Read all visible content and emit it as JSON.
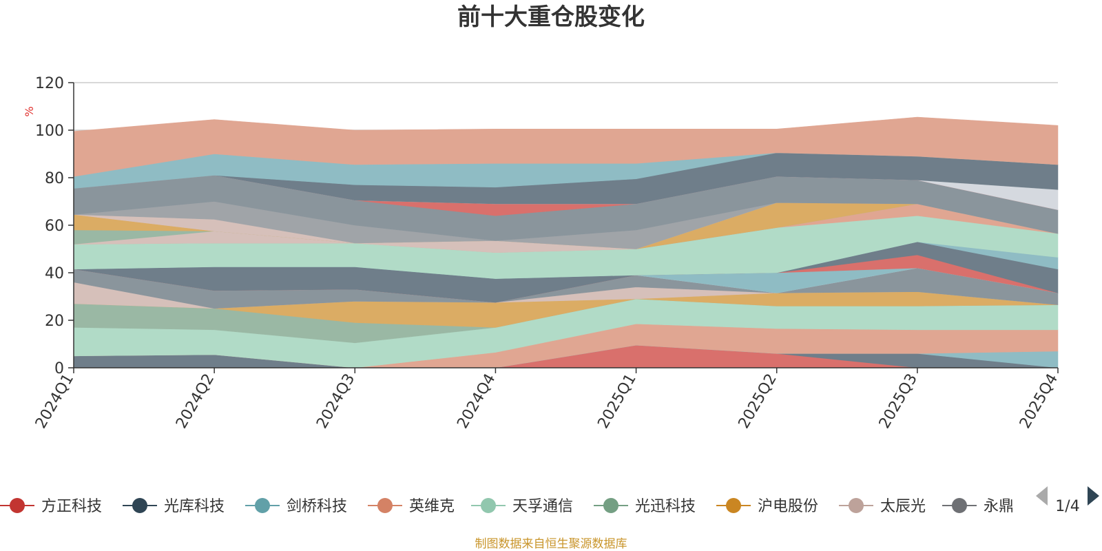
{
  "chart_data": {
    "type": "area",
    "stacked": true,
    "title": "前十大重仓股变化",
    "y_unit": "%",
    "x": [
      "2024Q1",
      "2024Q2",
      "2024Q3",
      "2024Q4",
      "2025Q1",
      "2025Q2",
      "2025Q3",
      "2025Q4"
    ],
    "ylim": [
      0,
      120
    ],
    "yticks": [
      0,
      20,
      40,
      60,
      80,
      100,
      120
    ],
    "grid": true,
    "legend_position": "bottom",
    "series": [
      {
        "name": "方正科技",
        "color": "#d9706c",
        "values": [
          0,
          0,
          0,
          0,
          9.5,
          6,
          0,
          0
        ]
      },
      {
        "name": "光库科技",
        "color": "#6f7e8a",
        "values": [
          5,
          5.5,
          0,
          0,
          0,
          0,
          6,
          0
        ]
      },
      {
        "name": "剑桥科技",
        "color": "#8fbcc4",
        "values": [
          0,
          0,
          0,
          0,
          0,
          0,
          0,
          7
        ]
      },
      {
        "name": "英维克",
        "color": "#e0a692",
        "values": [
          0,
          0,
          0,
          6.5,
          9,
          10.5,
          10,
          9
        ]
      },
      {
        "name": "天孚通信",
        "color": "#b1dbc7",
        "values": [
          12,
          10.5,
          10.5,
          10.5,
          10.5,
          9.5,
          10,
          10.5
        ]
      },
      {
        "name": "光迅科技",
        "color": "#9ab8a4",
        "values": [
          10,
          9,
          8.5,
          0,
          0,
          0,
          0,
          0
        ]
      },
      {
        "name": "沪电股份",
        "color": "#dbac64",
        "values": [
          0,
          0,
          9,
          10.5,
          0,
          5.5,
          6,
          0
        ]
      },
      {
        "name": "太辰光",
        "color": "#d6c0ba",
        "values": [
          9,
          0,
          0,
          0,
          5,
          0,
          0,
          0
        ]
      },
      {
        "name": "永鼎",
        "color": "#8a959c",
        "values": [
          5.5,
          7.5,
          5,
          0,
          5,
          0,
          10,
          5
        ]
      },
      {
        "name": "",
        "color": "#d5d9df",
        "values": [
          0,
          0,
          0,
          0,
          0,
          0,
          0,
          0
        ]
      },
      {
        "name": "",
        "color": "#8fbcc4",
        "values": [
          0,
          0,
          0,
          0,
          0,
          8.5,
          0,
          0
        ]
      },
      {
        "name": "",
        "color": "#d9706c",
        "values": [
          0,
          0,
          0,
          0,
          0,
          0,
          5.5,
          0
        ]
      },
      {
        "name": "",
        "color": "#6f7e8a",
        "values": [
          0,
          10,
          9.5,
          10,
          0,
          0,
          5.5,
          10
        ]
      },
      {
        "name": "",
        "color": "#8fbcc4",
        "values": [
          0,
          0,
          0,
          0,
          0,
          0,
          0,
          5
        ]
      },
      {
        "name": "",
        "color": "#b1dbc7",
        "values": [
          10.5,
          10,
          10,
          11,
          11,
          19,
          11,
          10
        ]
      },
      {
        "name": "",
        "color": "#e0a692",
        "values": [
          0,
          0,
          0,
          0,
          0,
          0,
          5,
          0
        ]
      },
      {
        "name": "",
        "color": "#d6c0ba",
        "values": [
          0,
          5,
          0,
          5,
          0,
          0,
          0,
          0
        ]
      },
      {
        "name": "",
        "color": "#9ab8a4",
        "values": [
          6,
          0,
          0,
          0,
          0,
          0,
          0,
          0
        ]
      },
      {
        "name": "",
        "color": "#dbac64",
        "values": [
          6.5,
          0,
          0,
          0,
          0,
          10.5,
          0,
          0
        ]
      },
      {
        "name": "",
        "color": "#d6c0ba",
        "values": [
          0,
          5,
          0,
          0,
          0,
          0,
          0,
          0
        ]
      },
      {
        "name": "",
        "color": "#a0a4a8",
        "values": [
          0,
          7.5,
          7.5,
          0,
          8,
          0,
          0,
          0
        ]
      },
      {
        "name": "",
        "color": "#8a959c",
        "values": [
          11,
          11,
          10.5,
          10.5,
          11,
          11,
          10,
          10
        ]
      },
      {
        "name": "",
        "color": "#d9706c",
        "values": [
          0,
          0,
          0,
          5,
          0,
          0,
          0,
          0
        ]
      },
      {
        "name": "",
        "color": "#d5d9df",
        "values": [
          0,
          0,
          0,
          0,
          0,
          0,
          0,
          8.5
        ]
      },
      {
        "name": "",
        "color": "#6f7e8a",
        "values": [
          0,
          0,
          6.5,
          7,
          10.5,
          10,
          10,
          10.5
        ]
      },
      {
        "name": "",
        "color": "#8fbcc4",
        "values": [
          5,
          9,
          8.5,
          10,
          6.5,
          0,
          0,
          0
        ]
      },
      {
        "name": "",
        "color": "#e0a692",
        "values": [
          19,
          14.5,
          14.5,
          14.5,
          14.5,
          10,
          16.5,
          16.5
        ]
      }
    ],
    "legend": {
      "items": [
        {
          "name": "方正科技",
          "color": "#c23531"
        },
        {
          "name": "光库科技",
          "color": "#2f4554"
        },
        {
          "name": "剑桥科技",
          "color": "#61a0a8"
        },
        {
          "name": "英维克",
          "color": "#d48265"
        },
        {
          "name": "天孚通信",
          "color": "#91c7ae"
        },
        {
          "name": "光迅科技",
          "color": "#749f83"
        },
        {
          "name": "沪电股份",
          "color": "#ca8622"
        },
        {
          "name": "太辰光",
          "color": "#bda29a"
        },
        {
          "name": "永鼎",
          "color": "#6e7074"
        }
      ],
      "page_indicator": "1/4"
    }
  },
  "footer": "制图数据来自恒生聚源数据库"
}
